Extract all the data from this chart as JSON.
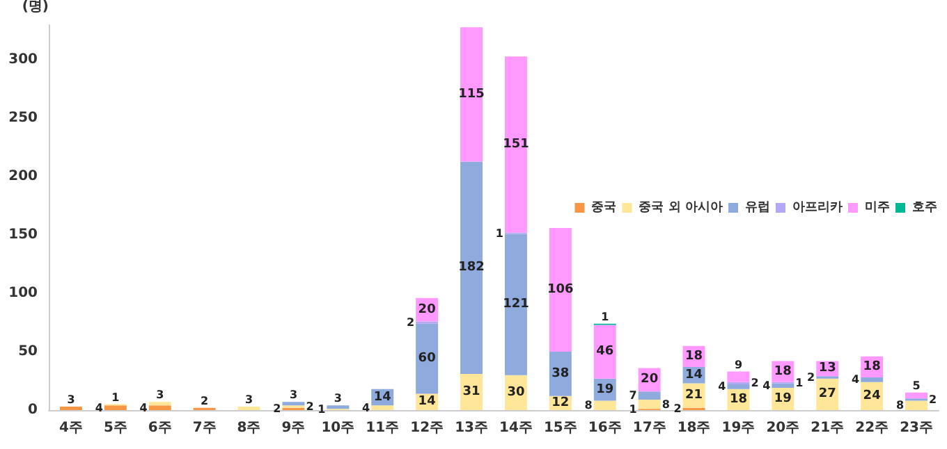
{
  "chart_data": {
    "type": "bar",
    "stacked": true,
    "ylabel": "(명)",
    "categories": [
      "4주",
      "5주",
      "6주",
      "7주",
      "8주",
      "9주",
      "10주",
      "11주",
      "12주",
      "13주",
      "14주",
      "15주",
      "16주",
      "17주",
      "18주",
      "19주",
      "20주",
      "21주",
      "22주",
      "23주"
    ],
    "series": [
      {
        "name": "중국",
        "color": "#f79646",
        "values": [
          3,
          4,
          4,
          2,
          null,
          2,
          null,
          null,
          null,
          null,
          null,
          null,
          null,
          1,
          2,
          null,
          null,
          null,
          null,
          null
        ]
      },
      {
        "name": "중국 외 아시아",
        "color": "#ffe699",
        "values": [
          null,
          1,
          3,
          null,
          3,
          2,
          1,
          4,
          14,
          31,
          30,
          12,
          8,
          8,
          21,
          18,
          19,
          27,
          24,
          8
        ]
      },
      {
        "name": "유럽",
        "color": "#8faadc",
        "values": [
          null,
          null,
          null,
          null,
          null,
          3,
          3,
          14,
          60,
          182,
          121,
          38,
          19,
          7,
          14,
          4,
          4,
          2,
          4,
          2
        ]
      },
      {
        "name": "아프리카",
        "color": "#b4a7f5",
        "values": [
          null,
          null,
          null,
          null,
          null,
          null,
          null,
          null,
          2,
          null,
          1,
          null,
          null,
          null,
          null,
          2,
          1,
          null,
          null,
          null
        ]
      },
      {
        "name": "미주",
        "color": "#ff99ff",
        "values": [
          null,
          null,
          null,
          null,
          null,
          null,
          null,
          null,
          20,
          115,
          151,
          106,
          46,
          20,
          18,
          9,
          18,
          13,
          18,
          5
        ]
      },
      {
        "name": "호주",
        "color": "#00b894",
        "values": [
          null,
          null,
          null,
          null,
          null,
          null,
          null,
          null,
          null,
          null,
          null,
          null,
          1,
          null,
          null,
          null,
          null,
          null,
          null,
          null
        ]
      }
    ],
    "ylim": [
      0,
      330
    ],
    "yticks": [
      0,
      50,
      100,
      150,
      200,
      250,
      300
    ],
    "grid": false,
    "legend": "right",
    "data_labels": true
  }
}
